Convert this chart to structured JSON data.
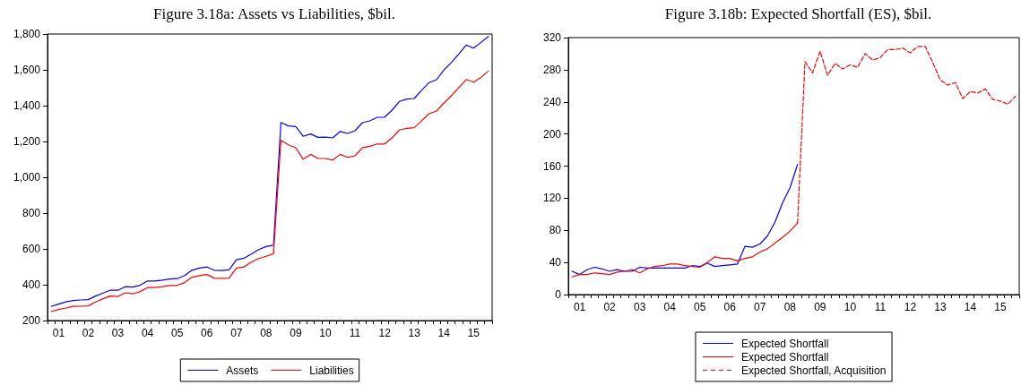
{
  "chart_data": [
    {
      "type": "line",
      "title": "Figure 3.18a: Assets vs Liabilities, $bil.",
      "marker": "none",
      "legend": "bottom",
      "grid": false,
      "categories": [
        null,
        "01",
        null,
        null,
        null,
        "02",
        null,
        null,
        null,
        "03",
        null,
        null,
        null,
        "04",
        null,
        null,
        null,
        "05",
        null,
        null,
        null,
        "06",
        null,
        null,
        null,
        "07",
        null,
        null,
        null,
        "08",
        null,
        null,
        null,
        "09",
        null,
        null,
        null,
        "10",
        null,
        null,
        null,
        "11",
        null,
        null,
        null,
        "12",
        null,
        null,
        null,
        "13",
        null,
        null,
        null,
        "14",
        null,
        null,
        null,
        "15",
        null,
        null
      ],
      "ylim": [
        200,
        1800
      ],
      "yticks": [
        200,
        400,
        600,
        800,
        {
          "value": 1000,
          "label": "1,000"
        },
        {
          "value": 1200,
          "label": "1,200"
        },
        {
          "value": 1400,
          "label": "1,400"
        },
        {
          "value": 1600,
          "label": "1,600"
        },
        {
          "value": 1800,
          "label": "1,800"
        }
      ],
      "series": [
        {
          "name": "Assets",
          "color": "#0000ff",
          "values": [
            279,
            292,
            304,
            312,
            315,
            317,
            337,
            354,
            370,
            369,
            389,
            387,
            397,
            421,
            421,
            426,
            432,
            434,
            451,
            481,
            493,
            499,
            481,
            479,
            483,
            539,
            548,
            571,
            596,
            613,
            621,
            1306,
            1287,
            1283,
            1229,
            1242,
            1223,
            1224,
            1220,
            1256,
            1245,
            1260,
            1305,
            1315,
            1335,
            1336,
            1375,
            1424,
            1437,
            1440,
            1487,
            1529,
            1545,
            1599,
            1641,
            1688,
            1738,
            1721,
            1753,
            1786
          ]
        },
        {
          "name": "Liabilities",
          "color": "#ff0000",
          "values": [
            250,
            262,
            270,
            279,
            280,
            282,
            304,
            322,
            337,
            334,
            355,
            349,
            362,
            384,
            384,
            389,
            396,
            396,
            412,
            442,
            451,
            457,
            437,
            436,
            437,
            493,
            499,
            526,
            546,
            559,
            573,
            1206,
            1181,
            1165,
            1101,
            1128,
            1106,
            1105,
            1096,
            1128,
            1111,
            1120,
            1166,
            1173,
            1186,
            1186,
            1220,
            1265,
            1273,
            1277,
            1317,
            1355,
            1370,
            1415,
            1456,
            1501,
            1546,
            1531,
            1558,
            1593
          ]
        }
      ]
    },
    {
      "type": "line",
      "title": "Figure 3.18b: Expected Shortfall (ES), $bil.",
      "marker": "none",
      "legend": "bottom",
      "grid": false,
      "categories": [
        null,
        "01",
        null,
        null,
        null,
        "02",
        null,
        null,
        null,
        "03",
        null,
        null,
        null,
        "04",
        null,
        null,
        null,
        "05",
        null,
        null,
        null,
        "06",
        null,
        null,
        null,
        "07",
        null,
        null,
        null,
        "08",
        null,
        null,
        null,
        "09",
        null,
        null,
        null,
        "10",
        null,
        null,
        null,
        "11",
        null,
        null,
        null,
        "12",
        null,
        null,
        null,
        "13",
        null,
        null,
        null,
        "14",
        null,
        null,
        null,
        "15",
        null,
        null
      ],
      "ylim": [
        0,
        320
      ],
      "yticks": [
        0,
        40,
        80,
        120,
        160,
        200,
        240,
        280,
        320
      ],
      "series": [
        {
          "name": "Expected Shortfall",
          "color": "#0000ff",
          "values": [
            29,
            25,
            31,
            34,
            32,
            29,
            31,
            29,
            29,
            34,
            33,
            33,
            33,
            33,
            33,
            33,
            36,
            35,
            39,
            35,
            36,
            37,
            38,
            60,
            59,
            63,
            73,
            90,
            114,
            133,
            162,
            null,
            null,
            null,
            null,
            null,
            null,
            null,
            null,
            null,
            null,
            null,
            null,
            null,
            null,
            null,
            null,
            null,
            null,
            null,
            null,
            null,
            null,
            null,
            null,
            null,
            null,
            null,
            null,
            null
          ]
        },
        {
          "name": "Expected Shortfall",
          "color": "#ff0000",
          "values": [
            22,
            25,
            25,
            27,
            26,
            25,
            28,
            29,
            31,
            27,
            32,
            35,
            36,
            38,
            38,
            36,
            35,
            34,
            40,
            47,
            45,
            45,
            42,
            45,
            47,
            53,
            57,
            64,
            71,
            79,
            89,
            null,
            null,
            null,
            null,
            null,
            null,
            null,
            null,
            null,
            null,
            null,
            null,
            null,
            null,
            null,
            null,
            null,
            null,
            null,
            null,
            null,
            null,
            null,
            null,
            null,
            null,
            null,
            null,
            null
          ]
        },
        {
          "name": "Expected Shortfall, Acquisition",
          "color": "#ff0000",
          "line_style": "dashed",
          "values": [
            null,
            null,
            null,
            null,
            null,
            null,
            null,
            null,
            null,
            null,
            null,
            null,
            null,
            null,
            null,
            null,
            null,
            null,
            null,
            null,
            null,
            null,
            null,
            null,
            null,
            null,
            null,
            null,
            null,
            null,
            89,
            290,
            276,
            303,
            273,
            288,
            281,
            286,
            283,
            300,
            292,
            295,
            305,
            305,
            307,
            301,
            309,
            309,
            289,
            267,
            261,
            264,
            244,
            253,
            251,
            256,
            243,
            241,
            237,
            247
          ]
        }
      ]
    }
  ]
}
